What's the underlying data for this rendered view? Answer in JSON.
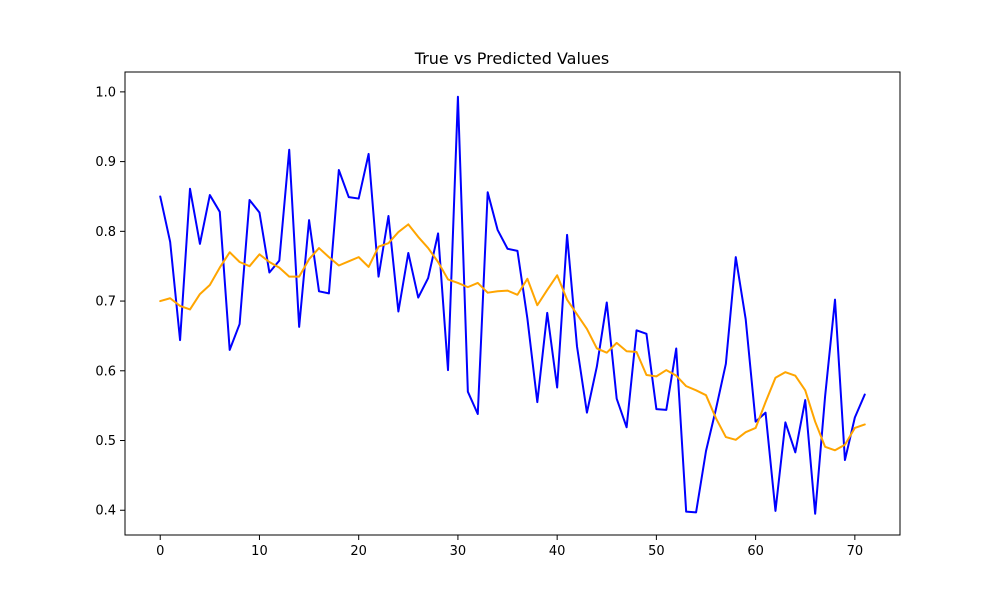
{
  "chart_data": {
    "type": "line",
    "title": "True vs Predicted Values",
    "xlabel": "",
    "ylabel": "",
    "xlim": [
      -3.55,
      74.55
    ],
    "ylim": [
      0.3645,
      1.0285
    ],
    "xticks": [
      0,
      10,
      20,
      30,
      40,
      50,
      60,
      70
    ],
    "yticks": [
      0.4,
      0.5,
      0.6,
      0.7,
      0.8,
      0.9,
      1.0
    ],
    "ytick_labels": [
      "0.4",
      "0.5",
      "0.6",
      "0.7",
      "0.8",
      "0.9",
      "1.0"
    ],
    "grid": false,
    "legend": "none",
    "x": [
      0,
      1,
      2,
      3,
      4,
      5,
      6,
      7,
      8,
      9,
      10,
      11,
      12,
      13,
      14,
      15,
      16,
      17,
      18,
      19,
      20,
      21,
      22,
      23,
      24,
      25,
      26,
      27,
      28,
      29,
      30,
      31,
      32,
      33,
      34,
      35,
      36,
      37,
      38,
      39,
      40,
      41,
      42,
      43,
      44,
      45,
      46,
      47,
      48,
      49,
      50,
      51,
      52,
      53,
      54,
      55,
      56,
      57,
      58,
      59,
      60,
      61,
      62,
      63,
      64,
      65,
      66,
      67,
      68,
      69,
      70,
      71
    ],
    "series": [
      {
        "color": "#0000ff",
        "values": [
          0.85,
          0.785,
          0.644,
          0.861,
          0.782,
          0.852,
          0.828,
          0.63,
          0.667,
          0.845,
          0.827,
          0.741,
          0.758,
          0.917,
          0.663,
          0.816,
          0.714,
          0.711,
          0.888,
          0.849,
          0.847,
          0.911,
          0.735,
          0.822,
          0.685,
          0.769,
          0.705,
          0.733,
          0.797,
          0.601,
          0.993,
          0.57,
          0.538,
          0.856,
          0.802,
          0.775,
          0.772,
          0.675,
          0.555,
          0.683,
          0.576,
          0.795,
          0.635,
          0.54,
          0.606,
          0.698,
          0.56,
          0.519,
          0.658,
          0.653,
          0.545,
          0.544,
          0.632,
          0.398,
          0.397,
          0.485,
          0.545,
          0.61,
          0.763,
          0.674,
          0.527,
          0.54,
          0.399,
          0.526,
          0.483,
          0.558,
          0.395,
          0.563,
          0.702,
          0.472,
          0.533,
          0.566
        ]
      },
      {
        "color": "#ffa500",
        "values": [
          0.7,
          0.704,
          0.693,
          0.688,
          0.71,
          0.723,
          0.748,
          0.77,
          0.756,
          0.75,
          0.767,
          0.756,
          0.748,
          0.735,
          0.735,
          0.76,
          0.776,
          0.763,
          0.751,
          0.757,
          0.763,
          0.749,
          0.778,
          0.783,
          0.799,
          0.81,
          0.792,
          0.776,
          0.756,
          0.731,
          0.726,
          0.72,
          0.726,
          0.712,
          0.714,
          0.715,
          0.709,
          0.732,
          0.694,
          0.716,
          0.737,
          0.702,
          0.681,
          0.66,
          0.632,
          0.626,
          0.64,
          0.628,
          0.627,
          0.594,
          0.592,
          0.601,
          0.593,
          0.578,
          0.572,
          0.565,
          0.532,
          0.505,
          0.501,
          0.512,
          0.518,
          0.555,
          0.59,
          0.598,
          0.593,
          0.572,
          0.527,
          0.491,
          0.486,
          0.494,
          0.518,
          0.523
        ]
      }
    ]
  }
}
